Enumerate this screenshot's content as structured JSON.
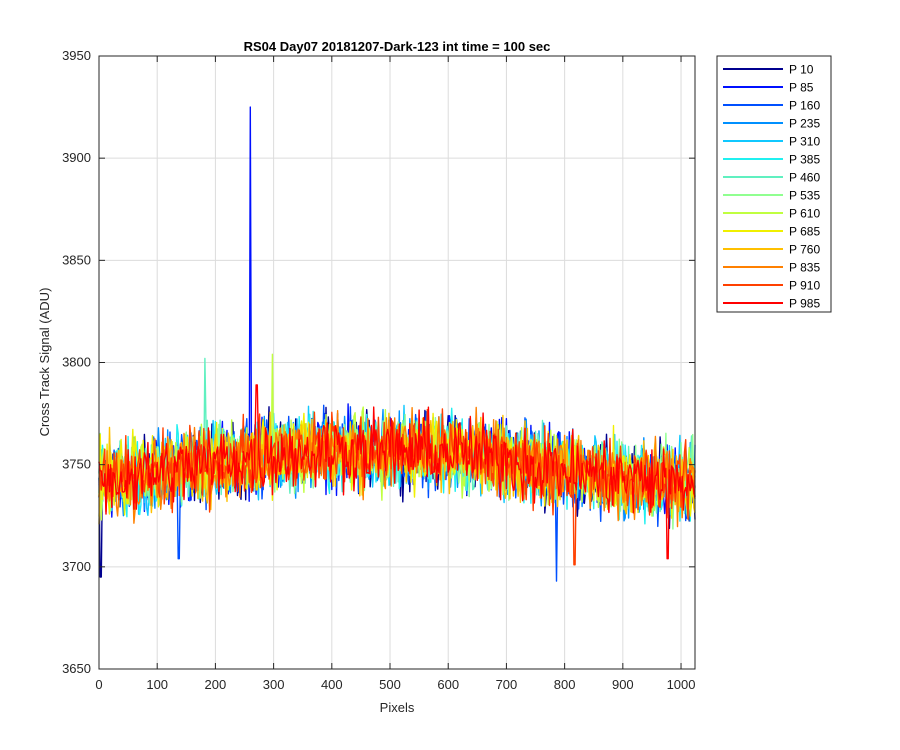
{
  "chart_data": {
    "type": "line",
    "title": "RS04 Day07 20181207-Dark-123 int time = 100 sec",
    "xlabel": "Pixels",
    "ylabel": "Cross Track Signal (ADU)",
    "xlim": [
      0,
      1024
    ],
    "ylim": [
      3650,
      3950
    ],
    "xticks": [
      0,
      100,
      200,
      300,
      400,
      500,
      600,
      700,
      800,
      900,
      1000
    ],
    "yticks": [
      3650,
      3700,
      3750,
      3800,
      3850,
      3900,
      3950
    ],
    "grid": true,
    "legend_position": "outside-right",
    "series": [
      {
        "name": "P 10",
        "color": "#00008F"
      },
      {
        "name": "P 85",
        "color": "#0010FF"
      },
      {
        "name": "P 160",
        "color": "#0050FF"
      },
      {
        "name": "P 235",
        "color": "#0090FF"
      },
      {
        "name": "P 310",
        "color": "#10C8FF"
      },
      {
        "name": "P 385",
        "color": "#20F0F0"
      },
      {
        "name": "P 460",
        "color": "#60F0C0"
      },
      {
        "name": "P 535",
        "color": "#90FF90"
      },
      {
        "name": "P 610",
        "color": "#C0FF40"
      },
      {
        "name": "P 685",
        "color": "#F0F000"
      },
      {
        "name": "P 760",
        "color": "#FFC000"
      },
      {
        "name": "P 835",
        "color": "#FF8000"
      },
      {
        "name": "P 910",
        "color": "#FF4000"
      },
      {
        "name": "P 985",
        "color": "#FF0000"
      }
    ],
    "signal_profile": {
      "x": [
        0,
        100,
        200,
        300,
        400,
        500,
        600,
        700,
        800,
        900,
        1024
      ],
      "y": [
        3742,
        3746,
        3751,
        3755,
        3757,
        3757,
        3756,
        3753,
        3747,
        3743,
        3741
      ],
      "noise_range": 16
    },
    "annotations": [
      {
        "series": "P 85",
        "x": 260,
        "y": 3925
      },
      {
        "series": "P 985",
        "x": 271,
        "y": 3789
      },
      {
        "series": "P 610",
        "x": 298,
        "y": 3804
      },
      {
        "series": "P 460",
        "x": 182,
        "y": 3802
      },
      {
        "series": "P 160",
        "x": 786,
        "y": 3693
      },
      {
        "series": "P 910",
        "x": 817,
        "y": 3701
      },
      {
        "series": "P 10",
        "x": 3,
        "y": 3695
      },
      {
        "series": "P 160",
        "x": 137,
        "y": 3704
      },
      {
        "series": "P 985",
        "x": 977,
        "y": 3704
      }
    ]
  }
}
